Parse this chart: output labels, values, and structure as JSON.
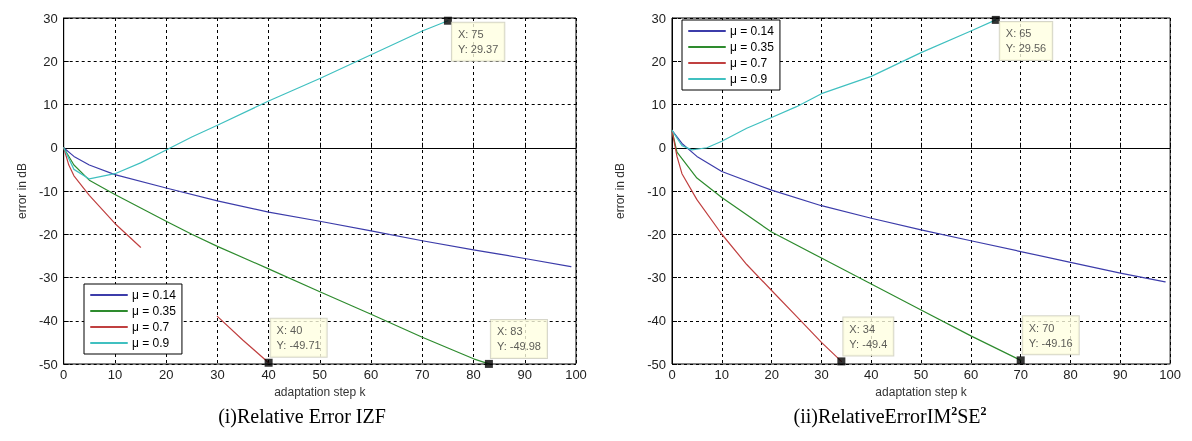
{
  "chart_data": [
    {
      "type": "line",
      "title": "(i)Relative Error IZF",
      "xlabel": "adaptation step k",
      "ylabel": "error in dB",
      "xlim": [
        0,
        100
      ],
      "xticks": [
        0,
        10,
        20,
        30,
        40,
        50,
        60,
        70,
        80,
        90,
        100
      ],
      "ylim": [
        -50,
        30
      ],
      "yticks": [
        -50,
        -40,
        -30,
        -20,
        -10,
        0,
        10,
        20,
        30
      ],
      "grid": true,
      "legend": "bottom left",
      "marker": "none",
      "line_style": "solid",
      "series": [
        {
          "name": "μ = 0.14",
          "color": "#3c3caa",
          "x": [
            0,
            2,
            5,
            10,
            20,
            30,
            40,
            50,
            60,
            70,
            80,
            90,
            99
          ],
          "values": [
            0,
            -2,
            -4,
            -6.2,
            -9.3,
            -12.3,
            -14.9,
            -17,
            -19.2,
            -21.5,
            -23.6,
            -25.6,
            -27.5
          ]
        },
        {
          "name": "μ = 0.35",
          "color": "#2e8b2e",
          "x": [
            0,
            2,
            5,
            10,
            20,
            25,
            30,
            40,
            50,
            60,
            70,
            80,
            83
          ],
          "values": [
            0,
            -4,
            -7.5,
            -10.8,
            -17,
            -20,
            -22.8,
            -28,
            -33.3,
            -38.5,
            -43.8,
            -48.8,
            -49.98
          ]
        },
        {
          "name": "μ = 0.7",
          "color": "#c04040",
          "x": [
            0,
            1,
            2,
            5,
            10,
            15,
            20,
            25,
            30,
            35,
            40
          ],
          "values": [
            0,
            -4,
            -6.5,
            -11,
            -17.5,
            -23,
            null,
            null,
            -39,
            -44.5,
            -49.71
          ]
        },
        {
          "name": "μ = 0.9",
          "color": "#40c0c0",
          "x": [
            0,
            2,
            5,
            10,
            15,
            20,
            25,
            30,
            40,
            50,
            60,
            70,
            75
          ],
          "values": [
            0,
            -5,
            -7.2,
            -6,
            -3.5,
            -0.5,
            2.5,
            5.2,
            10.8,
            16,
            21.5,
            27,
            29.37
          ]
        }
      ],
      "annotations": [
        {
          "text": "X: 75\nY: 29.37",
          "x": 75,
          "y": 29.37
        },
        {
          "text": "X: 40\nY: -49.71",
          "x": 40,
          "y": -49.71
        },
        {
          "text": "X: 83\nY: -49.98",
          "x": 83,
          "y": -49.98
        }
      ]
    },
    {
      "type": "line",
      "title": "(ii)RelativeErrorIM$^{2}$SE$^{2}$",
      "xlabel": "adaptation step k",
      "ylabel": "error in dB",
      "xlim": [
        0,
        100
      ],
      "xticks": [
        0,
        10,
        20,
        30,
        40,
        50,
        60,
        70,
        80,
        90,
        100
      ],
      "ylim": [
        -50,
        30
      ],
      "yticks": [
        -50,
        -40,
        -30,
        -20,
        -10,
        0,
        10,
        20,
        30
      ],
      "grid": true,
      "legend": "top left",
      "marker": "none",
      "line_style": "solid",
      "series": [
        {
          "name": "μ = 0.14",
          "color": "#3c3caa",
          "x": [
            0,
            2,
            5,
            10,
            20,
            30,
            40,
            50,
            60,
            70,
            80,
            90,
            99
          ],
          "values": [
            4,
            1,
            -2,
            -5.5,
            -9.8,
            -13.4,
            -16.3,
            -19,
            -21.5,
            -24,
            -26.5,
            -29,
            -31
          ]
        },
        {
          "name": "μ = 0.35",
          "color": "#2e8b2e",
          "x": [
            0,
            1,
            3,
            5,
            10,
            20,
            30,
            40,
            50,
            60,
            70
          ],
          "values": [
            4,
            -1,
            -4,
            -7,
            -11.5,
            -19.5,
            -25.5,
            -31.5,
            -37.5,
            -43.5,
            -49.16
          ]
        },
        {
          "name": "μ = 0.7",
          "color": "#c04040",
          "x": [
            0,
            1,
            2,
            5,
            10,
            15,
            20,
            25,
            30,
            34
          ],
          "values": [
            4,
            -2,
            -6,
            -12,
            -20,
            -27,
            -33,
            -39,
            -45,
            -49.4
          ]
        },
        {
          "name": "μ = 0.9",
          "color": "#40c0c0",
          "x": [
            0,
            2,
            4,
            7,
            10,
            15,
            20,
            25,
            30,
            40,
            50,
            60,
            65
          ],
          "values": [
            4,
            0.5,
            -0.5,
            0,
            1.5,
            4.5,
            7,
            9.5,
            12.5,
            16.5,
            22,
            27,
            29.56
          ]
        }
      ],
      "annotations": [
        {
          "text": "X: 65\nY: 29.56",
          "x": 65,
          "y": 29.56
        },
        {
          "text": "X: 34\nY: -49.4",
          "x": 34,
          "y": -49.4
        },
        {
          "text": "X: 70\nY: -49.16",
          "x": 70,
          "y": -49.16
        }
      ]
    }
  ]
}
